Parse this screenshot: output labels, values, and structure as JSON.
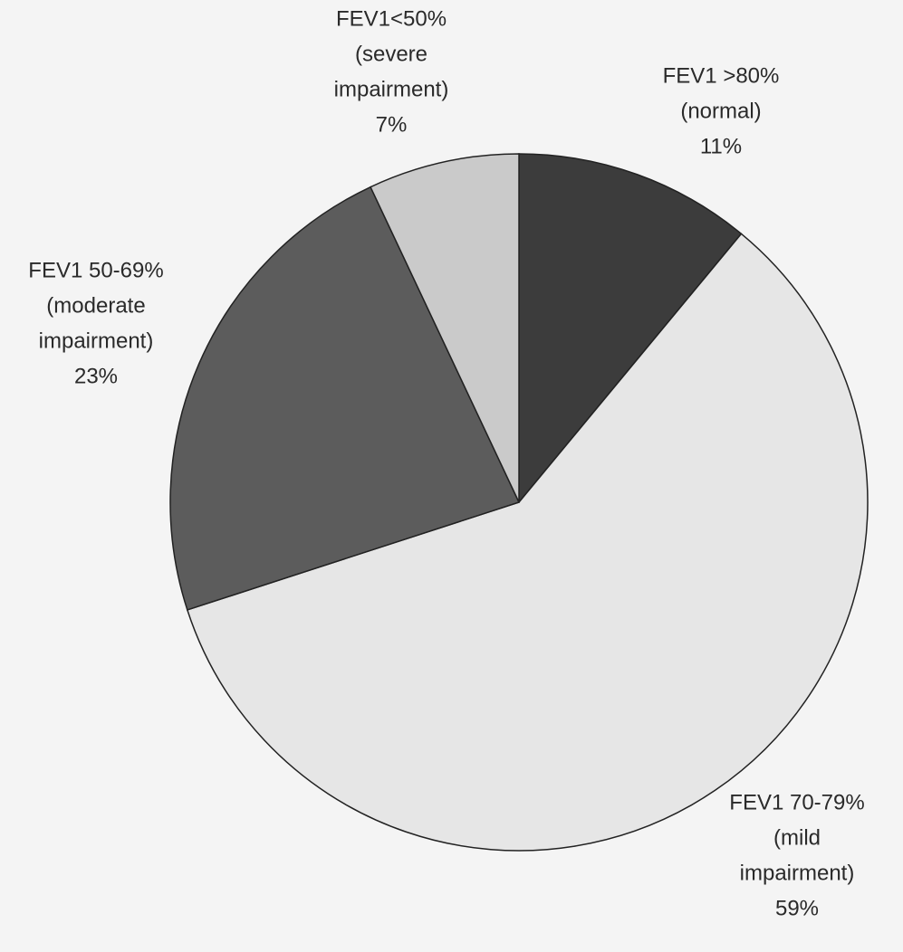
{
  "chart_data": {
    "type": "pie",
    "categories": [
      [
        "FEV1 >80%",
        "(normal)"
      ],
      [
        "FEV1 70-79%",
        "(mild",
        "impairment)"
      ],
      [
        "FEV1 50-69%",
        "(moderate",
        "impairment)"
      ],
      [
        "FEV1<50%",
        "(severe",
        "impairment)"
      ]
    ],
    "values": [
      11,
      59,
      23,
      7
    ],
    "value_labels": [
      "11%",
      "59%",
      "23%",
      "7%"
    ],
    "colors": [
      "#3c3c3c",
      "#e6e6e6",
      "#5c5c5c",
      "#cacaca"
    ]
  }
}
